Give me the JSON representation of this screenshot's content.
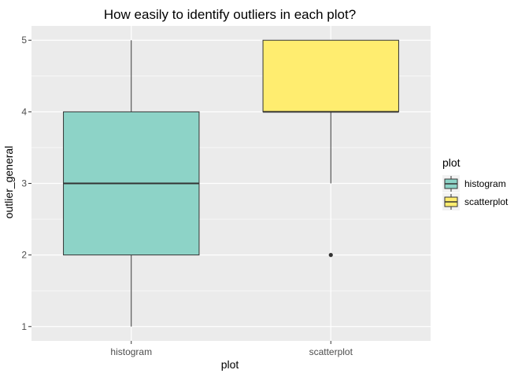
{
  "chart_data": {
    "type": "boxplot",
    "title": "How easily to identify outliers in each plot?",
    "xlabel": "plot",
    "ylabel": "outlier_general",
    "categories": [
      "histogram",
      "scatterplot"
    ],
    "ylim": [
      0.8,
      5.2
    ],
    "yticks": [
      1,
      2,
      3,
      4,
      5
    ],
    "yticklabels": [
      "1",
      "2",
      "3",
      "4",
      "5"
    ],
    "boxes": [
      {
        "category": "histogram",
        "min": 1,
        "q1": 2,
        "median": 3,
        "q3": 4,
        "max": 5,
        "outliers": [],
        "color": "#8DD3C7"
      },
      {
        "category": "scatterplot",
        "min": 3,
        "q1": 4,
        "median": 4,
        "q3": 5,
        "max": 5,
        "outliers": [
          2
        ],
        "color": "#FFED6F"
      }
    ],
    "grid": true,
    "panel_background": "#EBEBEB",
    "legend": {
      "title": "plot",
      "placement": "right",
      "entries": [
        {
          "label": "histogram",
          "color": "#8DD3C7"
        },
        {
          "label": "scatterplot",
          "color": "#FFED6F"
        }
      ]
    }
  }
}
